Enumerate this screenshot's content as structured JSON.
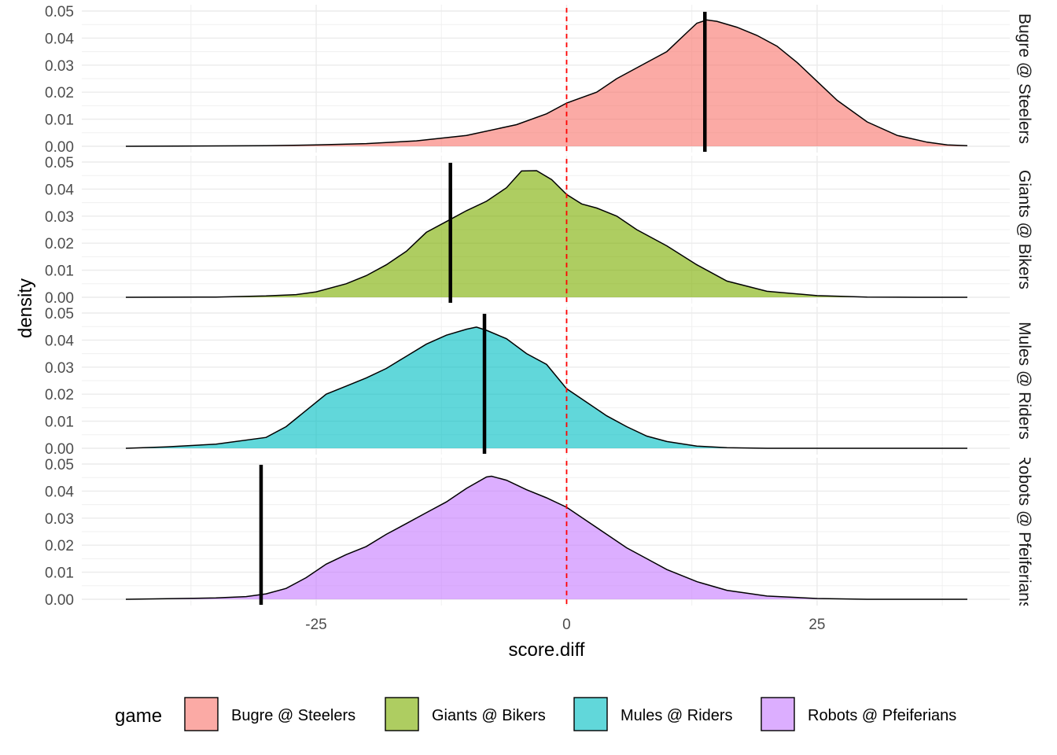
{
  "chart_data": {
    "type": "area",
    "xlabel": "score.diff",
    "ylabel": "density",
    "xlim": [
      -44,
      40
    ],
    "ylim": [
      0,
      0.05
    ],
    "x_ticks": [
      -25,
      0,
      25
    ],
    "y_ticks": [
      0.0,
      0.01,
      0.02,
      0.03,
      0.04,
      0.05
    ],
    "grid": true,
    "reference_line": {
      "x": 0,
      "color": "#ff0000",
      "style": "dashed"
    },
    "legend": {
      "title": "game",
      "position": "bottom"
    },
    "panels": [
      {
        "name": "Bugre @ Steelers",
        "strip_label": "Bugre @ Steelers",
        "color": "#F8766D",
        "marker_x": 13.8,
        "x": [
          -44,
          -30,
          -25,
          -20,
          -15,
          -10,
          -5,
          -2,
          0,
          3,
          5,
          8,
          10,
          12,
          13,
          14,
          15,
          17,
          19,
          21,
          23,
          25,
          27,
          30,
          33,
          36,
          38,
          40
        ],
        "y": [
          0.0,
          0.0002,
          0.0005,
          0.001,
          0.002,
          0.004,
          0.008,
          0.012,
          0.016,
          0.02,
          0.025,
          0.031,
          0.035,
          0.042,
          0.0455,
          0.0467,
          0.0462,
          0.044,
          0.041,
          0.037,
          0.031,
          0.024,
          0.017,
          0.009,
          0.004,
          0.0015,
          0.0005,
          0.0002
        ]
      },
      {
        "name": "Giants @ Bikers",
        "strip_label": "Giants @ Bikers",
        "color": "#7CAE00",
        "marker_x": -11.6,
        "x": [
          -44,
          -35,
          -30,
          -27,
          -25,
          -22,
          -20,
          -18,
          -16,
          -14,
          -12,
          -10,
          -8,
          -6,
          -4.5,
          -3,
          -1.5,
          0,
          1.5,
          3,
          5,
          7,
          10,
          13,
          16,
          20,
          25,
          30,
          35,
          40
        ],
        "y": [
          0.0,
          0.0001,
          0.0005,
          0.001,
          0.002,
          0.005,
          0.008,
          0.012,
          0.017,
          0.024,
          0.028,
          0.032,
          0.0355,
          0.0405,
          0.0467,
          0.0468,
          0.0435,
          0.038,
          0.0345,
          0.033,
          0.03,
          0.025,
          0.019,
          0.012,
          0.006,
          0.0022,
          0.0006,
          0.0001,
          0.0,
          0.0
        ]
      },
      {
        "name": "Mules @ Riders",
        "strip_label": "Mules @ Riders",
        "color": "#00BFC4",
        "marker_x": -8.2,
        "x": [
          -44,
          -40,
          -35,
          -30,
          -28,
          -26,
          -24,
          -22,
          -20,
          -18,
          -16,
          -14,
          -12,
          -10,
          -9,
          -8,
          -6,
          -4,
          -2,
          0,
          2,
          4,
          6,
          8,
          10,
          13,
          16,
          20,
          25,
          30,
          35,
          40
        ],
        "y": [
          0.0,
          0.0005,
          0.0015,
          0.004,
          0.008,
          0.014,
          0.02,
          0.023,
          0.026,
          0.0295,
          0.034,
          0.0385,
          0.0418,
          0.044,
          0.0448,
          0.0436,
          0.0405,
          0.035,
          0.031,
          0.022,
          0.017,
          0.012,
          0.008,
          0.0045,
          0.0025,
          0.0008,
          0.0002,
          0.0,
          0.0,
          0.0,
          0.0,
          0.0
        ]
      },
      {
        "name": "Robots @ Pfeiferians",
        "strip_label": "Robots @ Pfeiferians",
        "color": "#C77CFF",
        "marker_x": -30.5,
        "x": [
          -44,
          -35,
          -32,
          -30,
          -28,
          -26,
          -24,
          -22,
          -20,
          -18,
          -16,
          -14,
          -12,
          -10,
          -8,
          -7.5,
          -6,
          -4,
          -2,
          0,
          2,
          4,
          6,
          8,
          10,
          13,
          16,
          20,
          25,
          30,
          35,
          40
        ],
        "y": [
          0.0,
          0.0005,
          0.001,
          0.002,
          0.004,
          0.008,
          0.013,
          0.0165,
          0.0195,
          0.024,
          0.028,
          0.032,
          0.036,
          0.041,
          0.0452,
          0.0455,
          0.044,
          0.0405,
          0.0375,
          0.034,
          0.029,
          0.024,
          0.019,
          0.015,
          0.011,
          0.0065,
          0.0033,
          0.0012,
          0.0003,
          0.0,
          0.0,
          0.0
        ]
      }
    ]
  }
}
